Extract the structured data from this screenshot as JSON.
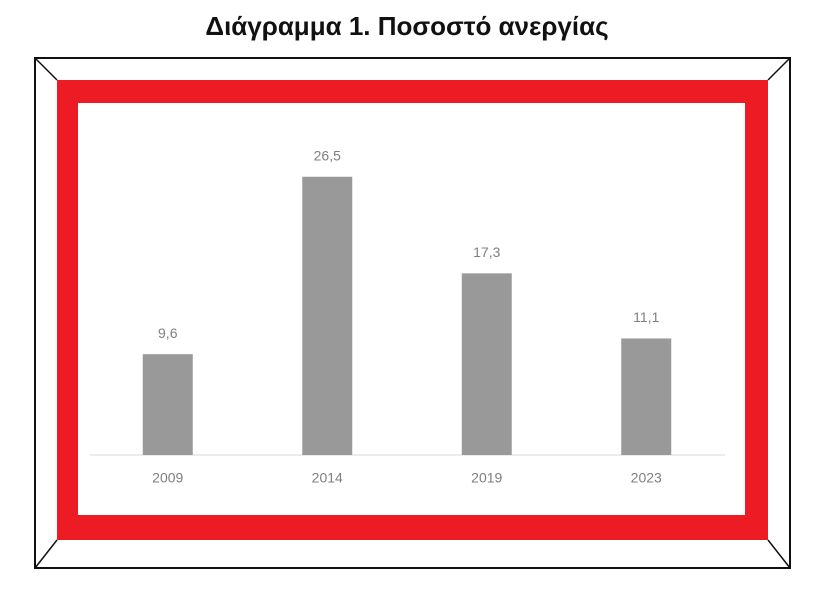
{
  "chart_data": {
    "type": "bar",
    "title": "Διάγραμμα 1. Ποσοστό ανεργίας",
    "categories": [
      "2009",
      "2014",
      "2019",
      "2023"
    ],
    "values": [
      9.6,
      26.5,
      17.3,
      11.1
    ],
    "value_labels": [
      "9,6",
      "26,5",
      "17,3",
      "11,1"
    ],
    "color": "#999999"
  }
}
